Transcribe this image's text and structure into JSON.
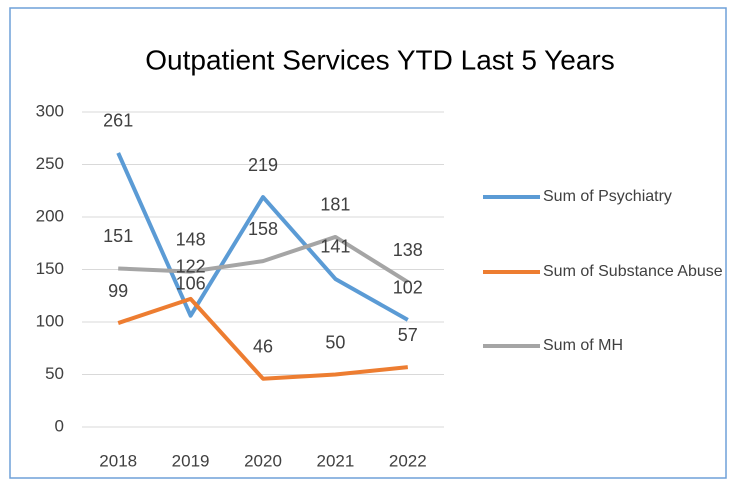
{
  "chart_data": {
    "type": "line",
    "title": "Outpatient Services YTD Last 5 Years",
    "categories": [
      "2018",
      "2019",
      "2020",
      "2021",
      "2022"
    ],
    "series": [
      {
        "name": "Sum of Psychiatry",
        "color": "#5b9bd5",
        "values": [
          261,
          106,
          219,
          141,
          102
        ]
      },
      {
        "name": "Sum of Substance Abuse",
        "color": "#ed7d31",
        "values": [
          99,
          122,
          46,
          50,
          57
        ]
      },
      {
        "name": "Sum of MH",
        "color": "#a5a5a5",
        "values": [
          151,
          148,
          158,
          181,
          138
        ]
      }
    ],
    "ylim": [
      0,
      300
    ],
    "yticks": [
      0,
      50,
      100,
      150,
      200,
      250,
      300
    ],
    "grid": true,
    "legend": "right"
  }
}
